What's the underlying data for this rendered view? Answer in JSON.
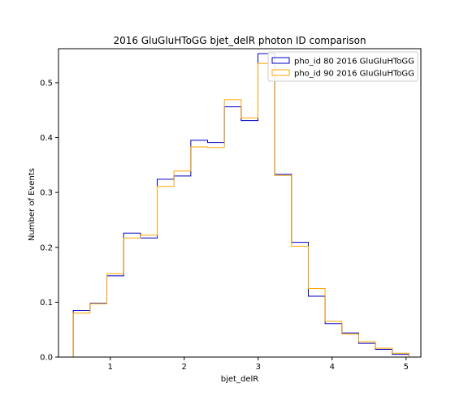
{
  "chart_data": {
    "type": "histogram",
    "title": "2016 GluGluHToGG bjet_delR photon ID comparison",
    "xlabel": "bjet_delR",
    "ylabel": "Number of Events",
    "xlim": [
      0.3,
      5.2
    ],
    "ylim": [
      0,
      0.562
    ],
    "xticks": [
      1,
      2,
      3,
      4,
      5
    ],
    "yticks": [
      0.0,
      0.1,
      0.2,
      0.3,
      0.4,
      0.5
    ],
    "ytick_labels": [
      "0.0",
      "0.1",
      "0.2",
      "0.3",
      "0.4",
      "0.5"
    ],
    "grid": false,
    "legend_position": "top-right",
    "bin_edges": [
      0.5,
      0.727,
      0.954,
      1.181,
      1.408,
      1.635,
      1.862,
      2.089,
      2.316,
      2.543,
      2.77,
      2.997,
      3.224,
      3.451,
      3.678,
      3.905,
      4.132,
      4.359,
      4.586,
      4.813,
      5.04
    ],
    "series": [
      {
        "name": "pho_id 80 2016 GluGluHToGG",
        "color": "#0000bf",
        "values": [
          0.085,
          0.098,
          0.148,
          0.226,
          0.217,
          0.324,
          0.33,
          0.395,
          0.391,
          0.456,
          0.431,
          0.553,
          0.333,
          0.209,
          0.111,
          0.061,
          0.044,
          0.025,
          0.014,
          0.005
        ]
      },
      {
        "name": "pho_id 90 2016 GluGluHToGG",
        "color": "#ffa500",
        "values": [
          0.08,
          0.097,
          0.152,
          0.217,
          0.222,
          0.311,
          0.339,
          0.383,
          0.382,
          0.469,
          0.436,
          0.535,
          0.331,
          0.202,
          0.125,
          0.065,
          0.042,
          0.028,
          0.016,
          0.007
        ]
      }
    ]
  }
}
